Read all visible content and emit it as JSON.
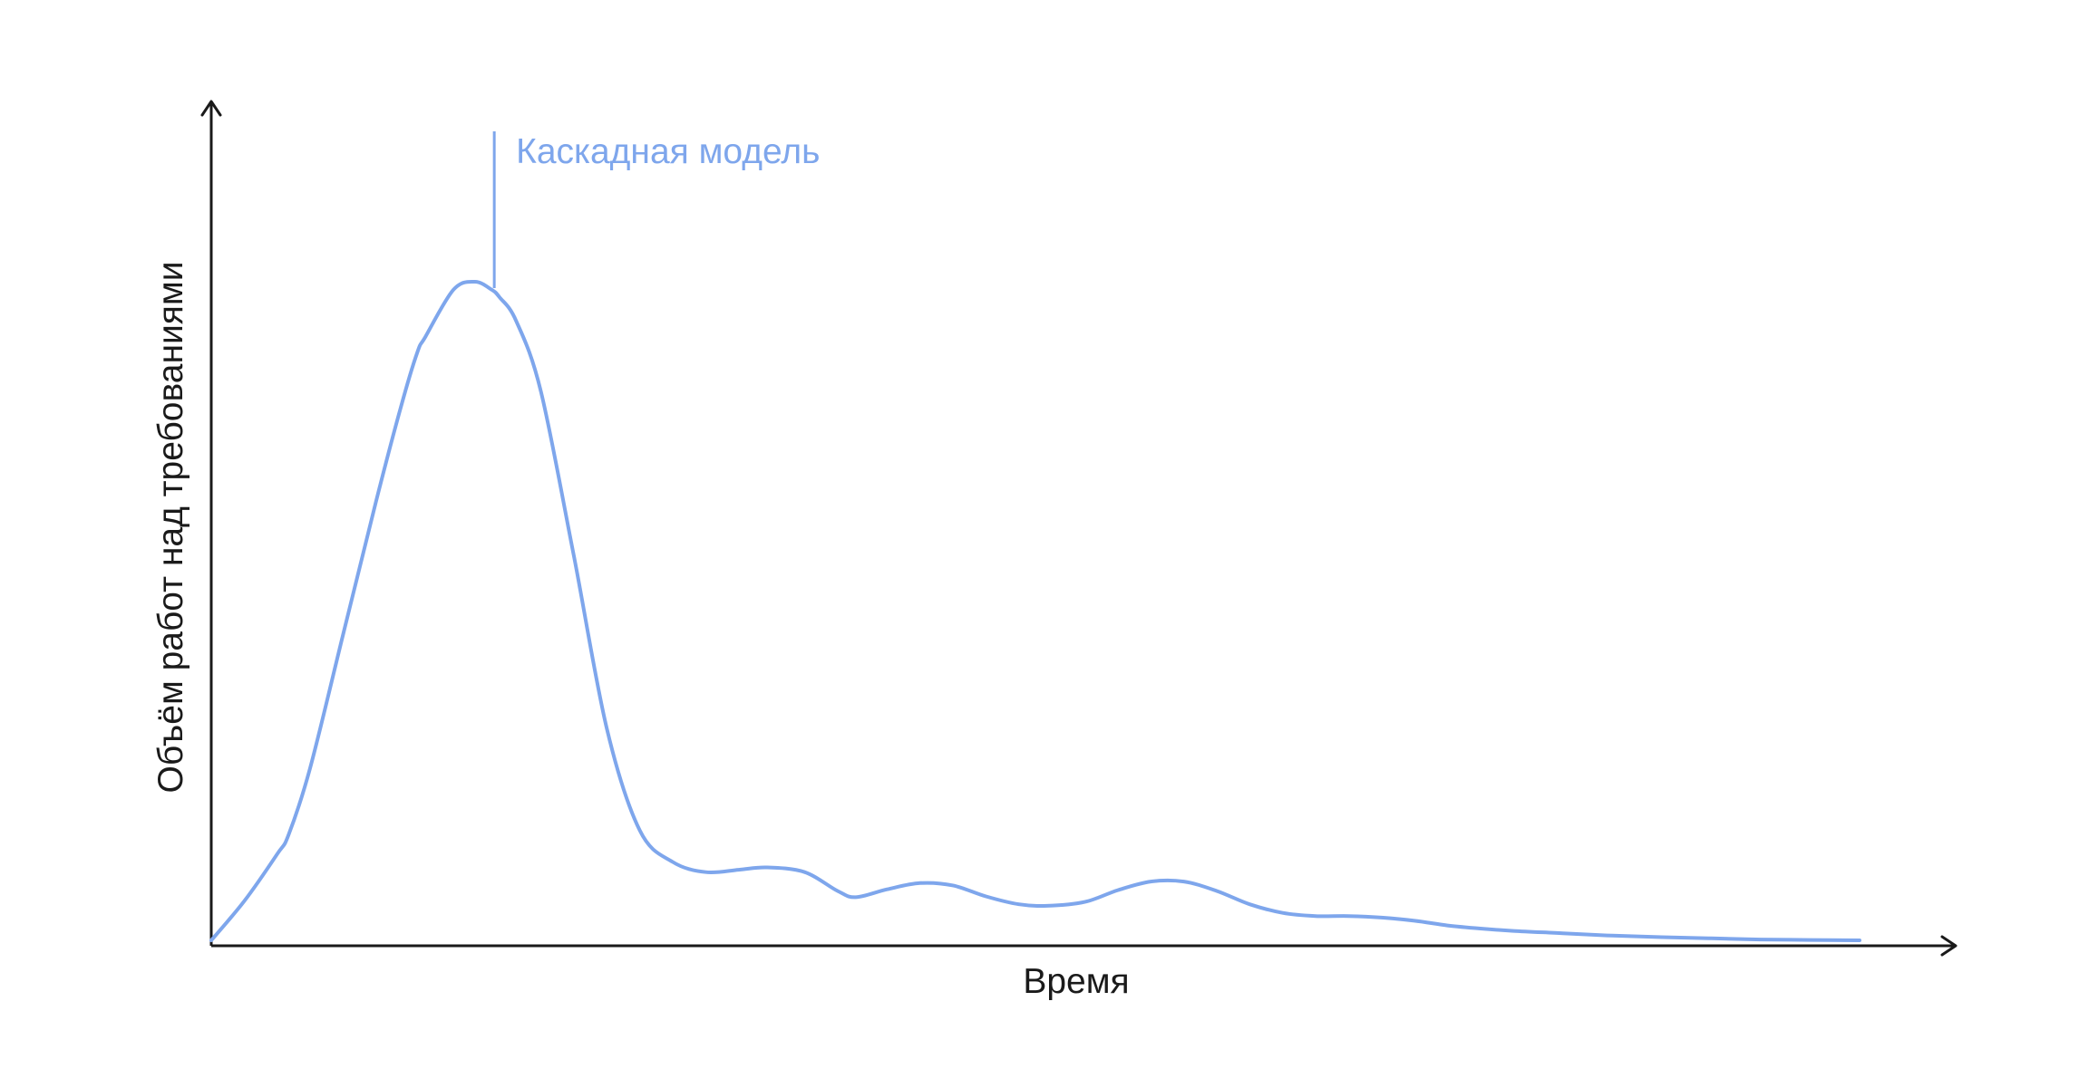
{
  "colors": {
    "series": "#7ea6ec",
    "axis": "#1a1a1a"
  },
  "chart_data": {
    "type": "line",
    "title": "",
    "xlabel": "Время",
    "ylabel": "Объём работ над требованиями",
    "grid": false,
    "ticks": false,
    "xlim": [
      0,
      100
    ],
    "ylim": [
      0,
      100
    ],
    "series": [
      {
        "x": [
          0,
          2,
          4,
          4.7,
          6,
          8,
          10,
          11.5,
          12.5,
          13,
          14.7,
          16,
          17,
          17.5,
          18.5,
          20,
          22,
          24,
          26,
          28,
          30,
          32,
          33.7,
          36,
          38,
          39.1,
          41,
          43,
          45,
          47,
          49,
          50.7,
          53,
          55,
          57,
          59,
          61,
          63,
          65,
          67,
          69,
          71,
          73,
          75,
          77,
          79,
          82,
          85,
          88,
          91,
          94,
          97,
          100
        ],
        "y": [
          0,
          5,
          11,
          13.5,
          22,
          39,
          56,
          68,
          75,
          77,
          83,
          84,
          83,
          82,
          79,
          70,
          49,
          27,
          14,
          10,
          8.7,
          9,
          9.3,
          8.7,
          6.3,
          5.5,
          6.5,
          7.3,
          7,
          5.6,
          4.6,
          4.4,
          4.9,
          6.4,
          7.5,
          7.5,
          6.3,
          4.6,
          3.5,
          3.1,
          3.1,
          2.9,
          2.5,
          1.9,
          1.5,
          1.2,
          0.9,
          0.6,
          0.4,
          0.25,
          0.1,
          0.05,
          0
        ]
      }
    ],
    "annotations": [
      {
        "text": "Каскадная модель",
        "x": 17.5
      }
    ]
  }
}
